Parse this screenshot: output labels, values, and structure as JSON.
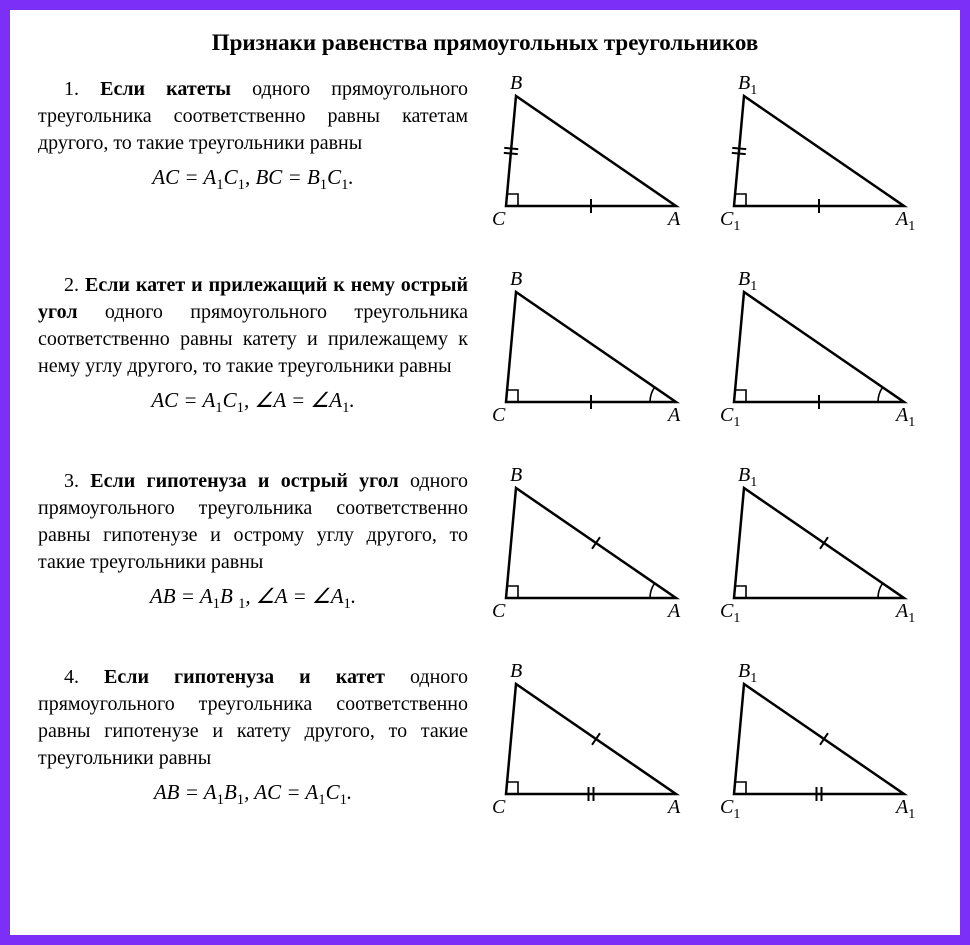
{
  "title": "Признаки равенства прямоугольных треугольников",
  "items": [
    {
      "num": "1.",
      "bold": "Если катеты",
      "rest": " одного прямоуголь­ного треугольника соответственно рав­ны катетам другого, то такие треугольники равны",
      "formula_html": "<i>AC</i> = <i>A</i><span class='sub'>1</span><i>C</i><span class='sub'>1</span>, <i>BC</i> = <i>B</i><span class='sub'>1</span><i>C</i><span class='sub'>1</span>.",
      "tri": {
        "tick_bc": 2,
        "tick_ca": 1,
        "tick_ab": 0,
        "angle_a": false,
        "labels": [
          "B",
          "C",
          "A"
        ],
        "labels1": [
          "B₁",
          "C₁",
          "A₁"
        ]
      }
    },
    {
      "num": "2.",
      "bold": "Если катет и прилежащий к нему острый угол",
      "rest": " одного прямоуголь­ного треугольника соответственно равны катету и прилежащему к нему углу другого, то такие треугольники равны",
      "formula_html": "<i>AC</i> = <i>A</i><span class='sub'>1</span><i>C</i><span class='sub'>1</span>, ∠<i>A</i> = ∠<i>A</i><span class='sub'>1</span>.",
      "tri": {
        "tick_bc": 0,
        "tick_ca": 1,
        "tick_ab": 0,
        "angle_a": true,
        "labels": [
          "B",
          "C",
          "A"
        ],
        "labels1": [
          "B₁",
          "C₁",
          "A₁"
        ]
      }
    },
    {
      "num": "3.",
      "bold": "Если гипотенуза и острый угол",
      "rest": " одного прямоугольного треугольника соответственно равны гипотенузе и острому углу другого, то такие тре­угольники равны",
      "formula_html": "<i>AB</i> = <i>A</i><span class='sub'>1</span><i>B </i><span class='sub'>1</span>, ∠<i>A</i> = ∠<i>A</i><span class='sub'>1</span>.",
      "tri": {
        "tick_bc": 0,
        "tick_ca": 0,
        "tick_ab": 1,
        "angle_a": true,
        "labels": [
          "B",
          "C",
          "A"
        ],
        "labels1": [
          "B₁",
          "C₁",
          "A₁"
        ]
      }
    },
    {
      "num": "4.",
      "bold": "Если гипотенуза и катет",
      "rest": " одного прямоугольного треугольника соот­ветственно равны гипотенузе и ка­тету другого, то такие треугольники равны",
      "formula_html": "<i>AB</i> = <i>A</i><span class='sub'>1</span><i>B</i><span class='sub'>1</span>, <i>AC</i> = <i>A</i><span class='sub'>1</span><i>C</i><span class='sub'>1</span>.",
      "tri": {
        "tick_bc": 0,
        "tick_ca": 2,
        "tick_ab": 1,
        "angle_a": false,
        "labels": [
          "B",
          "C",
          "A"
        ],
        "labels1": [
          "B₁",
          "C₁",
          "A₁"
        ]
      }
    }
  ],
  "geometry": {
    "B": [
      30,
      20
    ],
    "C": [
      20,
      130
    ],
    "A": [
      190,
      130
    ],
    "stroke": "#000000",
    "stroke_width": 2.5,
    "right_angle_size": 12,
    "angle_a_radius": 26,
    "tick_len": 7,
    "tick_gap": 5
  },
  "colors": {
    "border": "#7b2ff7",
    "bg": "#ffffff",
    "text": "#000000"
  }
}
